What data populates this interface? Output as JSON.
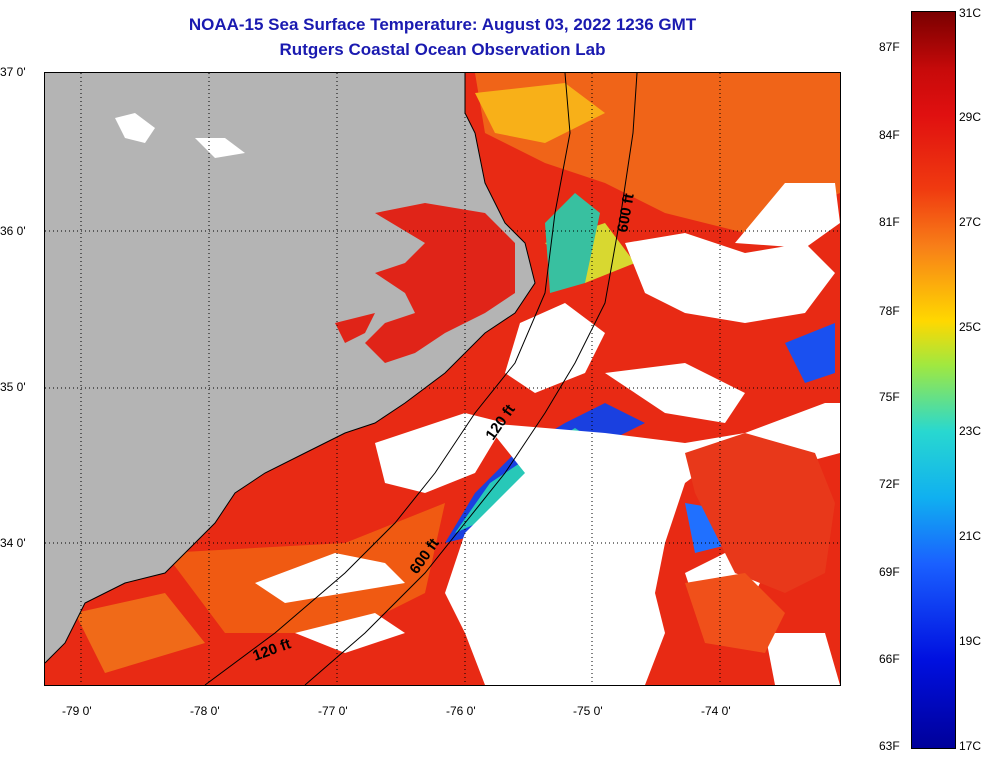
{
  "title": {
    "line1": "NOAA-15 Sea Surface Temperature:  August 03, 2022 1236 GMT",
    "line2": "Rutgers Coastal Ocean Observation Lab"
  },
  "map": {
    "lat_labels": [
      "37 0'",
      "36 0'",
      "35 0'",
      "34 0'"
    ],
    "lon_labels": [
      "-79 0'",
      "-78 0'",
      "-77 0'",
      "-76 0'",
      "-75 0'",
      "-74 0'"
    ],
    "contour_labels": [
      "600 ft",
      "120 ft",
      "600 ft",
      "120 ft"
    ],
    "land_color": "#b4b4b4",
    "cloud_color": "#ffffff"
  },
  "colorbar": {
    "f_labels": [
      "87F",
      "84F",
      "81F",
      "78F",
      "75F",
      "72F",
      "69F",
      "66F",
      "63F"
    ],
    "c_labels": [
      "31C",
      "29C",
      "27C",
      "25C",
      "23C",
      "21C",
      "19C",
      "17C"
    ],
    "colors": [
      "#7a0000",
      "#e01010",
      "#f05a10",
      "#ffd800",
      "#28d8d0",
      "#1a60ff",
      "#00009a"
    ]
  }
}
